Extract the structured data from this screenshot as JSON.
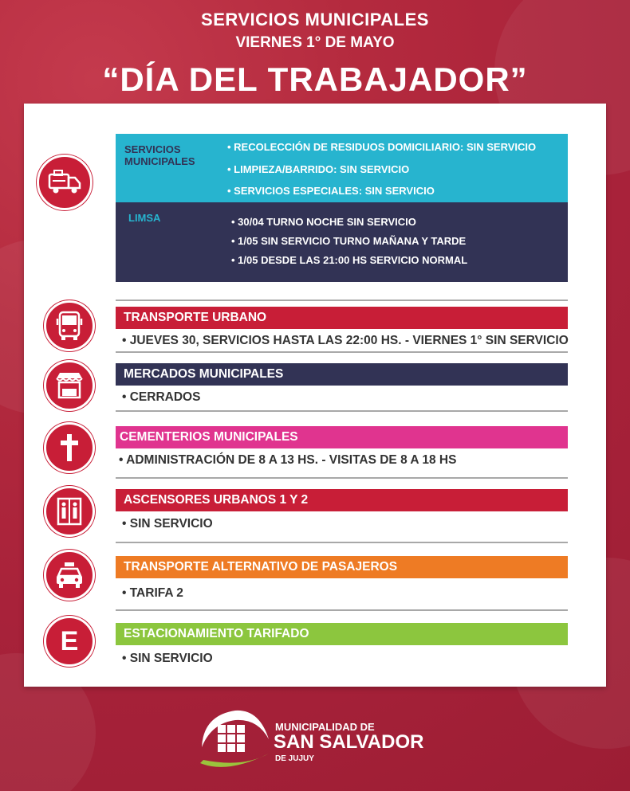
{
  "header": {
    "line1": "SERVICIOS MUNICIPALES",
    "line2": "VIERNES 1° DE MAYO",
    "title": "“DÍA DEL TRABAJADOR”"
  },
  "colors": {
    "background": "#a8223a",
    "red": "#c81e37",
    "cyan": "#27b4cf",
    "navy": "#323355",
    "magenta": "#e0348f",
    "orange": "#ee7b24",
    "green": "#8cc63e"
  },
  "residuos": {
    "icon": "garbage-truck-icon",
    "servicios": {
      "label_line1": "SERVICIOS",
      "label_line2": "MUNICIPALES",
      "items": [
        "• RECOLECCIÓN DE RESIDUOS DOMICILIARIO: SIN SERVICIO",
        "• LIMPIEZA/BARRIDO: SIN SERVICIO",
        "• SERVICIOS ESPECIALES: SIN SERVICIO"
      ]
    },
    "limsa": {
      "label": "LIMSA",
      "items": [
        "• 30/04 TURNO NOCHE SIN SERVICIO",
        "• 1/05 SIN SERVICIO TURNO MAÑANA Y TARDE",
        "• 1/05 DESDE LAS 21:00 HS SERVICIO NORMAL"
      ]
    }
  },
  "sections": [
    {
      "title": "TRANSPORTE  URBANO",
      "detail": "• JUEVES 30, SERVICIOS HASTA LAS 22:00 HS. - VIERNES 1° SIN SERVICIO",
      "icon": "bus-icon"
    },
    {
      "title": "MERCADOS MUNICIPALES",
      "detail": "• CERRADOS",
      "icon": "market-stall-icon"
    },
    {
      "title": "CEMENTERIOS MUNICIPALES",
      "detail": "• ADMINISTRACIÓN DE 8 A 13 HS. - VISITAS DE 8 A 18 HS",
      "icon": "cross-icon"
    },
    {
      "title": "ASCENSORES URBANOS  1 Y 2",
      "detail": "• SIN SERVICIO",
      "icon": "elevator-icon"
    },
    {
      "title": "TRANSPORTE ALTERNATIVO DE PASAJEROS",
      "detail": "• TARIFA 2",
      "icon": "taxi-icon"
    },
    {
      "title": "ESTACIONAMIENTO TARIFADO",
      "detail": "• SIN SERVICIO",
      "icon": "parking-e-icon",
      "icon_letter": "E"
    }
  ],
  "logo": {
    "line1": "MUNICIPALIDAD DE",
    "line2": "SAN SALVADOR",
    "line3": "DE JUJUY"
  }
}
